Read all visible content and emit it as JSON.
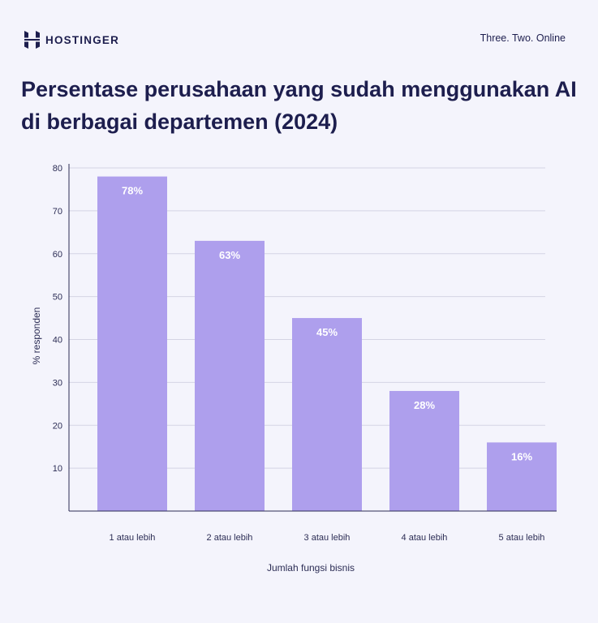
{
  "header": {
    "brand": "HOSTINGER",
    "logo_icon": "hostinger-logo-icon",
    "tagline": "Three. Two. Online"
  },
  "title": "Persentase perusahaan yang sudah menggunakan AI di berbagai departemen (2024)",
  "chart_data": {
    "type": "bar",
    "title": "Persentase perusahaan yang sudah menggunakan AI di berbagai departemen (2024)",
    "categories": [
      "1 atau lebih",
      "2 atau lebih",
      "3 atau lebih",
      "4 atau lebih",
      "5 atau lebih"
    ],
    "values": [
      78,
      63,
      45,
      28,
      16
    ],
    "data_labels": [
      "78%",
      "63%",
      "45%",
      "28%",
      "16%"
    ],
    "xlabel": "Jumlah fungsi bisnis",
    "ylabel": "% responden",
    "ylim": [
      0,
      80
    ],
    "yticks": [
      10,
      20,
      30,
      40,
      50,
      60,
      70,
      80
    ],
    "grid": true,
    "bar_color": "#ae9fed",
    "grid_color": "#d4d4e4"
  }
}
